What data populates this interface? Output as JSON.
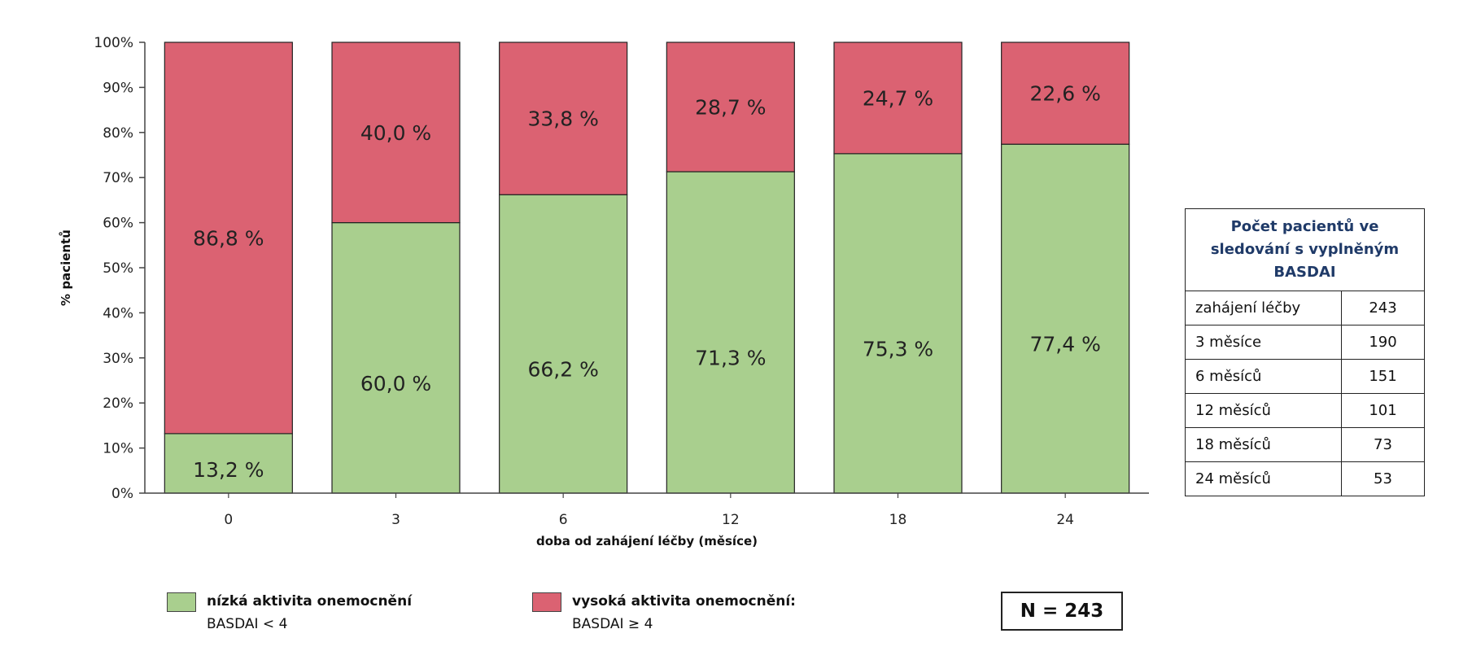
{
  "chart_data": {
    "type": "bar",
    "stacked": true,
    "categories": [
      "0",
      "3",
      "6",
      "12",
      "18",
      "24"
    ],
    "series": [
      {
        "name": "nízká aktivita onemocnění",
        "values": [
          13.2,
          60.0,
          66.2,
          71.3,
          75.3,
          77.4
        ],
        "labels": [
          "13,2 %",
          "60,0 %",
          "66,2 %",
          "71,3 %",
          "75,3 %",
          "77,4 %"
        ],
        "color": "#a9cf8e"
      },
      {
        "name": "vysoká aktivita onemocnění:",
        "values": [
          86.8,
          40.0,
          33.8,
          28.7,
          24.7,
          22.6
        ],
        "labels": [
          "86,8 %",
          "40,0 %",
          "33,8 %",
          "28,7 %",
          "24,7 %",
          "22,6 %"
        ],
        "color": "#db6272"
      }
    ],
    "xlabel": "doba od zahájení léčby (měsíce)",
    "ylabel": "% pacientů",
    "ylim": [
      0,
      100
    ],
    "yticks": [
      "0%",
      "10%",
      "20%",
      "30%",
      "40%",
      "50%",
      "60%",
      "70%",
      "80%",
      "90%",
      "100%"
    ],
    "grid": false,
    "legend_position": "bottom"
  },
  "legend": {
    "low": {
      "name": "nízká aktivita onemocnění",
      "sub": "BASDAI < 4",
      "color": "#a9cf8e"
    },
    "high": {
      "name": "vysoká aktivita onemocnění:",
      "sub": "BASDAI ≥ 4",
      "color": "#db6272"
    }
  },
  "n_box": "N = 243",
  "patient_table": {
    "header": "Počet pacientů ve sledování s vyplněným BASDAI",
    "rows": [
      {
        "label": "zahájení léčby",
        "count": "243"
      },
      {
        "label": "3 měsíce",
        "count": "190"
      },
      {
        "label": "6 měsíců",
        "count": "151"
      },
      {
        "label": "12 měsíců",
        "count": "101"
      },
      {
        "label": "18 měsíců",
        "count": "73"
      },
      {
        "label": "24 měsíců",
        "count": "53"
      }
    ]
  }
}
